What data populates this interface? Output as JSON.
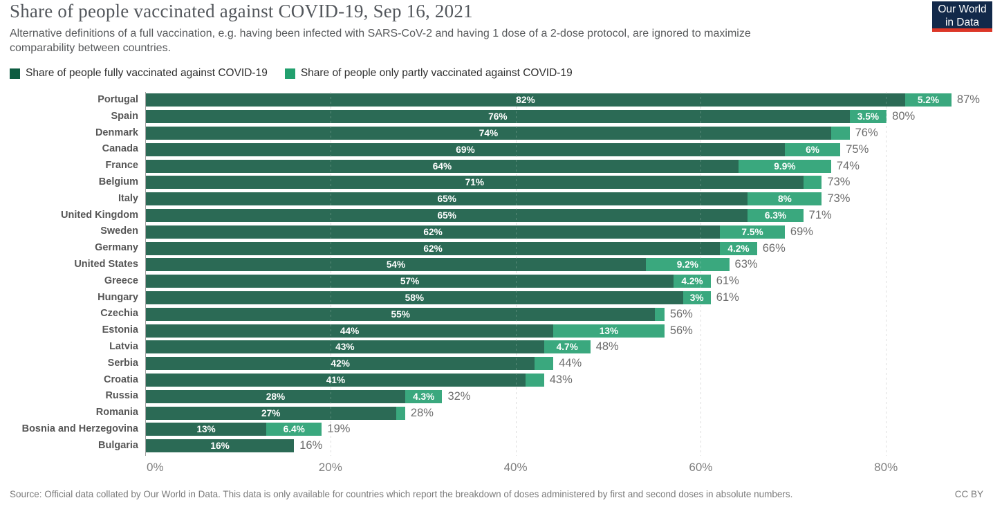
{
  "header": {
    "title": "Share of people vaccinated against COVID-19, Sep 16, 2021",
    "subtitle": "Alternative definitions of a full vaccination, e.g. having been infected with SARS-CoV-2 and having 1 dose of a 2-dose protocol, are ignored to maximize comparability between countries.",
    "logo": {
      "line1": "Our World",
      "line2": "in Data",
      "bg_color": "#12294a",
      "accent_color": "#dc3627"
    }
  },
  "legend": [
    {
      "label": "Share of people fully vaccinated against COVID-19",
      "color": "#0d5c41"
    },
    {
      "label": "Share of people only partly vaccinated against COVID-19",
      "color": "#22a06e"
    }
  ],
  "chart_data": {
    "type": "bar",
    "orientation": "horizontal",
    "stacked": true,
    "title": "Share of people vaccinated against COVID-19, Sep 16, 2021",
    "series_names": [
      "Share of people fully vaccinated against COVID-19",
      "Share of people only partly vaccinated against COVID-19"
    ],
    "colors": {
      "full": "#2b6a55",
      "partial": "#3aa87e",
      "total_label": "#6d6d6d"
    },
    "xlim": [
      0,
      91.5
    ],
    "x_axis": {
      "ticks": [
        {
          "value": 0,
          "label": "0%"
        },
        {
          "value": 20,
          "label": "20%"
        },
        {
          "value": 40,
          "label": "40%"
        },
        {
          "value": 60,
          "label": "60%"
        },
        {
          "value": 80,
          "label": "80%"
        }
      ],
      "gridlines": [
        20,
        40,
        60,
        80
      ],
      "grid_style": "dashed"
    },
    "rows": [
      {
        "country": "Portugal",
        "full": 82,
        "full_label": "82%",
        "partial": 5.2,
        "partial_label": "5.2%",
        "total": 87,
        "total_label": "87%"
      },
      {
        "country": "Spain",
        "full": 76,
        "full_label": "76%",
        "partial": 3.5,
        "partial_label": "3.5%",
        "total": 80,
        "total_label": "80%"
      },
      {
        "country": "Denmark",
        "full": 74,
        "full_label": "74%",
        "partial": 2,
        "partial_label": null,
        "total": 76,
        "total_label": "76%"
      },
      {
        "country": "Canada",
        "full": 69,
        "full_label": "69%",
        "partial": 6,
        "partial_label": "6%",
        "total": 75,
        "total_label": "75%"
      },
      {
        "country": "France",
        "full": 64,
        "full_label": "64%",
        "partial": 9.9,
        "partial_label": "9.9%",
        "total": 74,
        "total_label": "74%"
      },
      {
        "country": "Belgium",
        "full": 71,
        "full_label": "71%",
        "partial": 2,
        "partial_label": null,
        "total": 73,
        "total_label": "73%"
      },
      {
        "country": "Italy",
        "full": 65,
        "full_label": "65%",
        "partial": 8,
        "partial_label": "8%",
        "total": 73,
        "total_label": "73%"
      },
      {
        "country": "United Kingdom",
        "full": 65,
        "full_label": "65%",
        "partial": 6.3,
        "partial_label": "6.3%",
        "total": 71,
        "total_label": "71%"
      },
      {
        "country": "Sweden",
        "full": 62,
        "full_label": "62%",
        "partial": 7.5,
        "partial_label": "7.5%",
        "total": 69,
        "total_label": "69%"
      },
      {
        "country": "Germany",
        "full": 62,
        "full_label": "62%",
        "partial": 4.2,
        "partial_label": "4.2%",
        "total": 66,
        "total_label": "66%"
      },
      {
        "country": "United States",
        "full": 54,
        "full_label": "54%",
        "partial": 9.2,
        "partial_label": "9.2%",
        "total": 63,
        "total_label": "63%"
      },
      {
        "country": "Greece",
        "full": 57,
        "full_label": "57%",
        "partial": 4.2,
        "partial_label": "4.2%",
        "total": 61,
        "total_label": "61%"
      },
      {
        "country": "Hungary",
        "full": 58,
        "full_label": "58%",
        "partial": 3,
        "partial_label": "3%",
        "total": 61,
        "total_label": "61%"
      },
      {
        "country": "Czechia",
        "full": 55,
        "full_label": "55%",
        "partial": 1,
        "partial_label": null,
        "total": 56,
        "total_label": "56%"
      },
      {
        "country": "Estonia",
        "full": 44,
        "full_label": "44%",
        "partial": 13,
        "partial_label": "13%",
        "total": 56,
        "total_label": "56%"
      },
      {
        "country": "Latvia",
        "full": 43,
        "full_label": "43%",
        "partial": 4.7,
        "partial_label": "4.7%",
        "total": 48,
        "total_label": "48%"
      },
      {
        "country": "Serbia",
        "full": 42,
        "full_label": "42%",
        "partial": 2,
        "partial_label": null,
        "total": 44,
        "total_label": "44%"
      },
      {
        "country": "Croatia",
        "full": 41,
        "full_label": "41%",
        "partial": 2,
        "partial_label": null,
        "total": 43,
        "total_label": "43%"
      },
      {
        "country": "Russia",
        "full": 28,
        "full_label": "28%",
        "partial": 4.3,
        "partial_label": "4.3%",
        "total": 32,
        "total_label": "32%"
      },
      {
        "country": "Romania",
        "full": 27,
        "full_label": "27%",
        "partial": 1,
        "partial_label": null,
        "total": 28,
        "total_label": "28%"
      },
      {
        "country": "Bosnia and Herzegovina",
        "full": 13,
        "full_label": "13%",
        "partial": 6.4,
        "partial_label": "6.4%",
        "total": 19,
        "total_label": "19%"
      },
      {
        "country": "Bulgaria",
        "full": 16,
        "full_label": "16%",
        "partial": 0,
        "partial_label": null,
        "total": 16,
        "total_label": "16%"
      }
    ]
  },
  "footer": {
    "source": "Source: Official data collated by Our World in Data. This data is only available for countries which report the breakdown of doses administered by first and second doses in absolute numbers.",
    "license": "CC BY"
  }
}
